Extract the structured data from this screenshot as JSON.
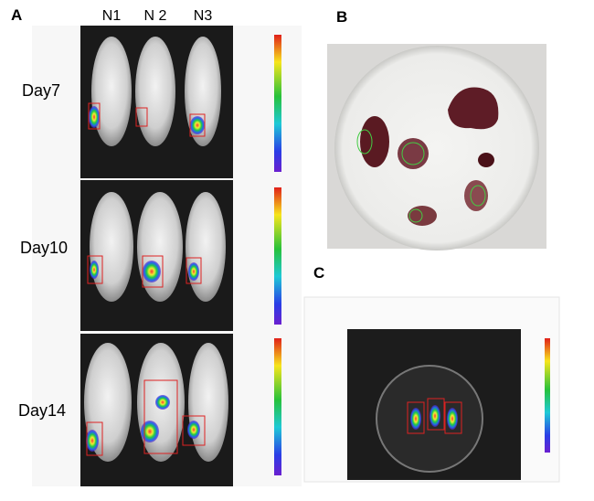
{
  "panel_a": {
    "label": "A",
    "columns": [
      "N1",
      "N 2",
      "N3"
    ],
    "rows": [
      "Day7",
      "Day10",
      "Day14"
    ]
  },
  "panel_b": {
    "label": "B"
  },
  "panel_c": {
    "label": "C"
  }
}
